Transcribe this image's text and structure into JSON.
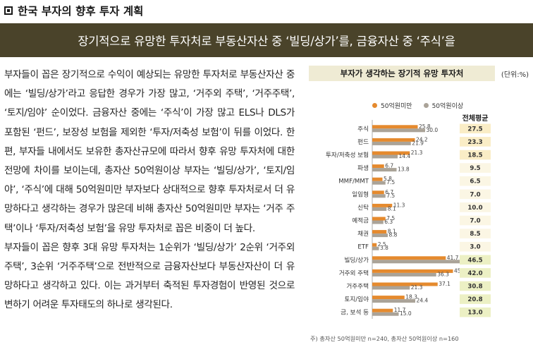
{
  "section_title": "한국 부자의 향후 투자 계획",
  "banner": "장기적으로 유망한 투자처로 부동산자산 중 ‘빌딩/상가’를, 금융자산 중 ‘주식’을",
  "body_paragraphs": [
    "부자들이 꼽은 장기적으로 수익이 예상되는 유망한 투자처로 부동산자산 중에는 ‘빌딩/상가’라고 응답한 경우가 가장 많고, ‘거주외 주택’, ‘거주주택’, ‘토지/임야’ 순이었다. 금융자산 중에는 ‘주식’이 가장 많고 ELS나 DLS가 포함된 ‘펀드’, 보장성 보험을 제외한 ‘투자/저축성 보험’이 뒤를 이었다. 한편, 부자들 내에서도 보유한 총자산규모에 따라서 향후 유망 투자처에 대한 전망에 차이를 보이는데, 총자산 50억원이상 부자는 ‘빌딩/상가’, ‘토지/임야’, ‘주식’에 대해 50억원미만 부자보다 상대적으로 향후 투자처로서 더 유망하다고 생각하는 경우가 많은데 비해 총자산 50억원미만 부자는 ‘거주 주택’이나 ‘투자/저축성 보험’을 유망 투자처로 꼽은 비중이 더 높다.",
    "부자들이 꼽은 향후 3대 유망 투자처는 1순위가 ‘빌딩/상가’ 2순위 ‘거주외 주택’, 3순위 ‘거주주택’으로 전반적으로 금융자산보다 부동산자산이 더 유망하다고 생각하고 있다. 이는 과거부터 축적된 투자경험이 반영된 것으로 변하기 어려운 투자태도의 하나로 생각된다."
  ],
  "chart_data": {
    "type": "bar",
    "orientation": "horizontal",
    "title": "부자가 생각하는 장기적 유망 투자처",
    "unit": "(단위:%)",
    "categories": [
      "주식",
      "펀드",
      "투자/저축성 보험",
      "파생",
      "MMF/MMT",
      "일임형",
      "신탁",
      "예적금",
      "채권",
      "ETF",
      "빌딩/상가",
      "거주외 주택",
      "거주주택",
      "토지/임야",
      "금, 보석 등"
    ],
    "series": [
      {
        "name": "50억원미만",
        "color": "#e58a2e",
        "values": [
          25.8,
          24.2,
          21.3,
          6.7,
          5.8,
          6.7,
          11.3,
          7.5,
          8.1,
          2.5,
          41.7,
          45.8,
          37.1,
          18.3,
          11.7
        ]
      },
      {
        "name": "50억원이상",
        "color": "#aaa398",
        "values": [
          30.0,
          21.9,
          14.4,
          13.8,
          7.5,
          7.5,
          8.1,
          6.3,
          8.8,
          3.8,
          53.8,
          36.3,
          21.3,
          24.4,
          15.0
        ]
      }
    ],
    "avg_label": "전체평균",
    "avg_values": [
      "27.5",
      "23.3",
      "18.5",
      "9.5",
      "6.5",
      "7.0",
      "10.0",
      "7.0",
      "8.5",
      "3.0",
      "46.5",
      "42.0",
      "30.8",
      "20.8",
      "13.0"
    ],
    "avg_colors": [
      "#faedc6",
      "#faedc6",
      "#faedc6",
      "#fbf6e4",
      "#fbf6e4",
      "#fbf6e4",
      "#fbf6e4",
      "#fbf6e4",
      "#fbf6e4",
      "#fbf6e4",
      "#ecf0c4",
      "#ecf0c4",
      "#ecf0c4",
      "#ecf0c4",
      "#ecf0c4"
    ],
    "xlim": [
      0,
      60
    ],
    "grid": false,
    "legend": "top",
    "footnote": "주) 총자산 50억원미만 n=240, 총자산 50억원이상 n=160"
  }
}
